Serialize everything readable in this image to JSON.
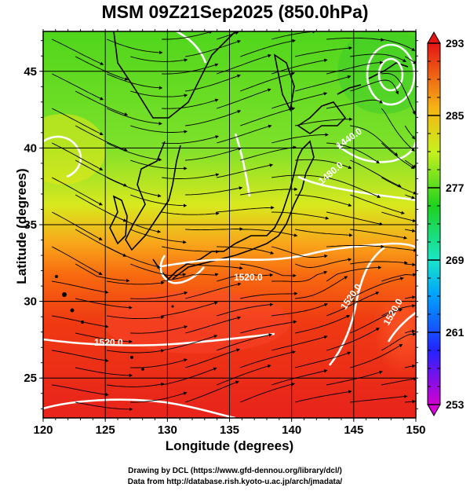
{
  "title": "MSM 09Z21Sep2025 (850.0hPa)",
  "axes": {
    "xlabel": "Longitude (degrees)",
    "ylabel": "Latitude  (degrees)",
    "xticks": [
      "120",
      "125",
      "130",
      "135",
      "140",
      "145",
      "150"
    ],
    "yticks": [
      "25",
      "30",
      "35",
      "40",
      "45"
    ],
    "lon_range": [
      120,
      150
    ],
    "lat_range": [
      22.4,
      47.6
    ]
  },
  "colorbar": {
    "labels": [
      "293",
      "285",
      "277",
      "269",
      "261",
      "253"
    ],
    "range": [
      253,
      293
    ]
  },
  "contour_labels": [
    "1520.0",
    "1520.0",
    "1520.0",
    "1520.0",
    "1440.0",
    "1480.0"
  ],
  "credits": {
    "line1": "Drawing by DCL (https://www.gfd-dennou.org/library/dcl/)",
    "line2": "Data from http://database.rish.kyoto-u.ac.jp/arch/jmadata/"
  },
  "colors": {
    "warm": "#e8231b",
    "mid": "#4fe01c",
    "contour": "#ffffff",
    "streamline": "#000000"
  }
}
